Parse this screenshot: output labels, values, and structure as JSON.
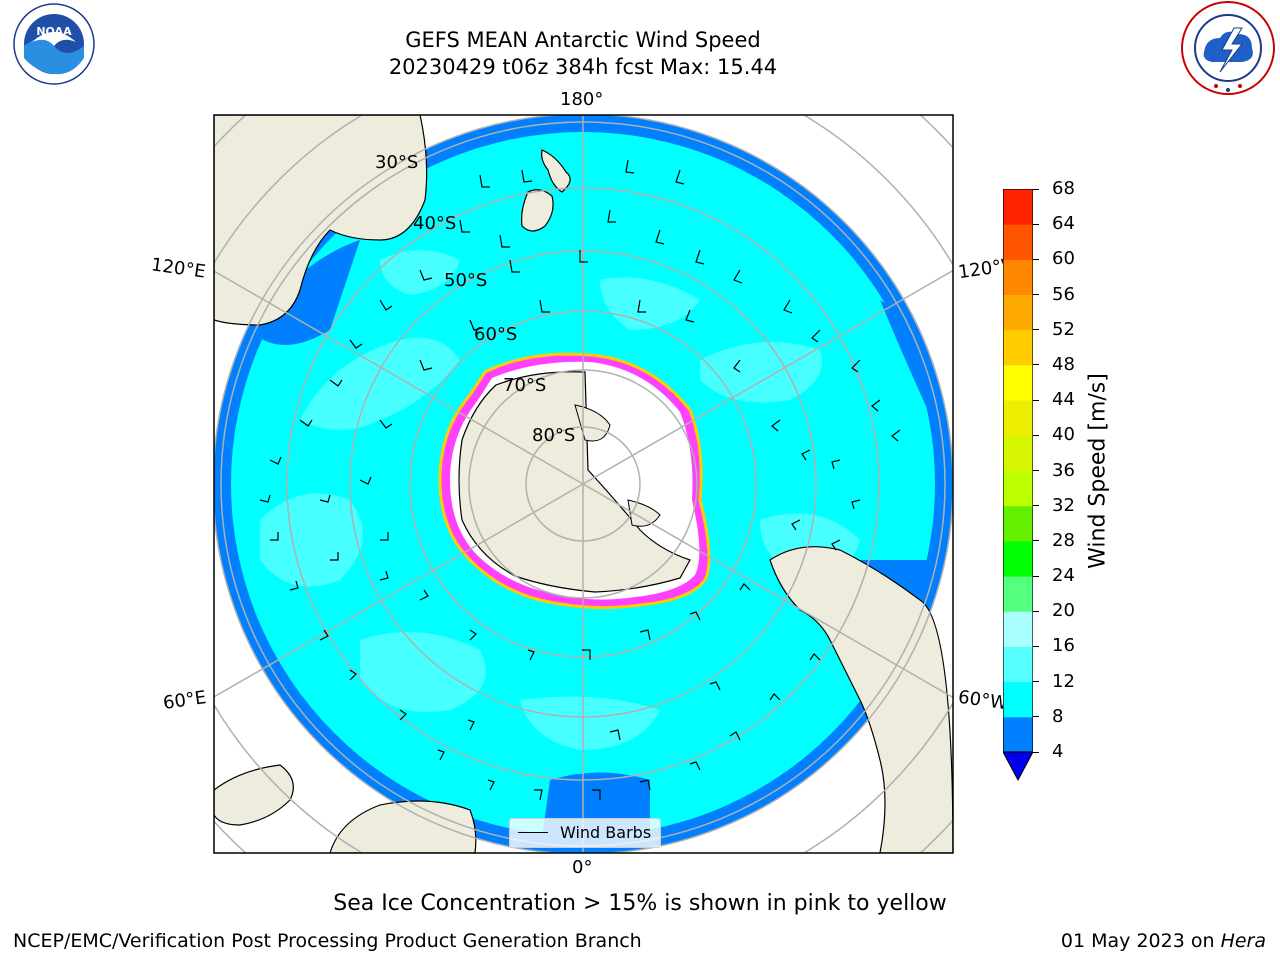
{
  "header": {
    "title_line1": "GEFS MEAN Antarctic Wind Speed",
    "title_line2": "20230429 t06z 384h fcst   Max: 15.44"
  },
  "logos": {
    "noaa_text": "NOAA",
    "noaa_ring_text": "NATIONAL OCEANIC AND ATMOSPHERIC ADMINISTRATION · U.S. DEPARTMENT OF COMMERCE",
    "nws_ring_text": "NATIONAL WEATHER SERVICE"
  },
  "map": {
    "longitude_labels": {
      "top": "180°",
      "bottom": "0°",
      "upper_left": "120°E",
      "upper_right": "120°W",
      "lower_left": "60°E",
      "lower_right": "60°W"
    },
    "latitude_labels": [
      "30°S",
      "40°S",
      "50°S",
      "60°S",
      "70°S",
      "80°S"
    ],
    "legend_label": "Wind Barbs",
    "colors": {
      "ocean_low": "#00ffff",
      "ocean_band": "#0080ff",
      "ocean_mid": "#55ffff",
      "land": "#eeecdc",
      "ice_shelf": "#ffffff",
      "sea_ice": "#ff40ff"
    }
  },
  "colorbar": {
    "label": "Wind Speed [m/s]",
    "ticks": [
      "4",
      "8",
      "12",
      "16",
      "20",
      "24",
      "28",
      "32",
      "36",
      "40",
      "44",
      "48",
      "52",
      "56",
      "60",
      "64",
      "68"
    ],
    "colors": [
      "#0080ff",
      "#00ffff",
      "#55ffff",
      "#aaffff",
      "#55ff80",
      "#00ff00",
      "#66ee00",
      "#bbff00",
      "#d6f500",
      "#eeee00",
      "#ffff00",
      "#ffcc00",
      "#ffaa00",
      "#ff8800",
      "#ff5500",
      "#ff2200"
    ],
    "under_color": "#0000ee"
  },
  "caption": "Sea Ice Concentration > 15% is shown in pink to yellow",
  "footer": {
    "left": "NCEP/EMC/Verification Post Processing Product Generation Branch",
    "right_date": "01 May 2023 on ",
    "right_machine": "Hera"
  }
}
